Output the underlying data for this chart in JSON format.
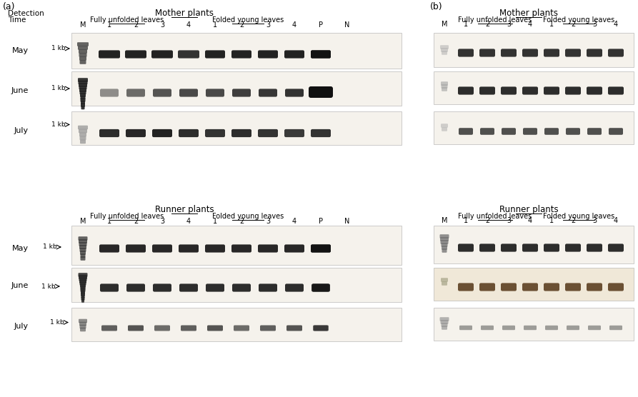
{
  "bg_color": "#ffffff",
  "gel_bg_light": "#f5f2ec",
  "gel_bg_june_b_runner": "#f0e8d8",
  "band_dark": "#111111",
  "band_brown": "#4a2a0a",
  "ladder_dark": "#333333",
  "ladder_light": "#888888",
  "panel_a_top_title": "Mother plants",
  "panel_a_bottom_title": "Runner plants",
  "panel_b_top_title": "Mother plants",
  "panel_b_bottom_title": "Runner plants",
  "subtitle_ful": "Fully unfolded leaves",
  "subtitle_fyl": "Folded young leaves",
  "detection_line1": "Detection",
  "detection_line2": "Time",
  "lane_labels_a": [
    "M",
    "1",
    "2",
    "3",
    "4",
    "1",
    "2",
    "3",
    "4",
    "P",
    "N"
  ],
  "lane_labels_b": [
    "M",
    "1",
    "2",
    "3",
    "4",
    "1",
    "2",
    "3",
    "4"
  ],
  "months": [
    "May",
    "June",
    "July"
  ],
  "kb_label": "1 kb",
  "fontsize_title": 8.5,
  "fontsize_subtitle": 7.0,
  "fontsize_lane": 7.0,
  "fontsize_month": 8.0,
  "fontsize_kb": 6.5,
  "fontsize_panel": 9.0,
  "fontsize_detect": 7.5
}
